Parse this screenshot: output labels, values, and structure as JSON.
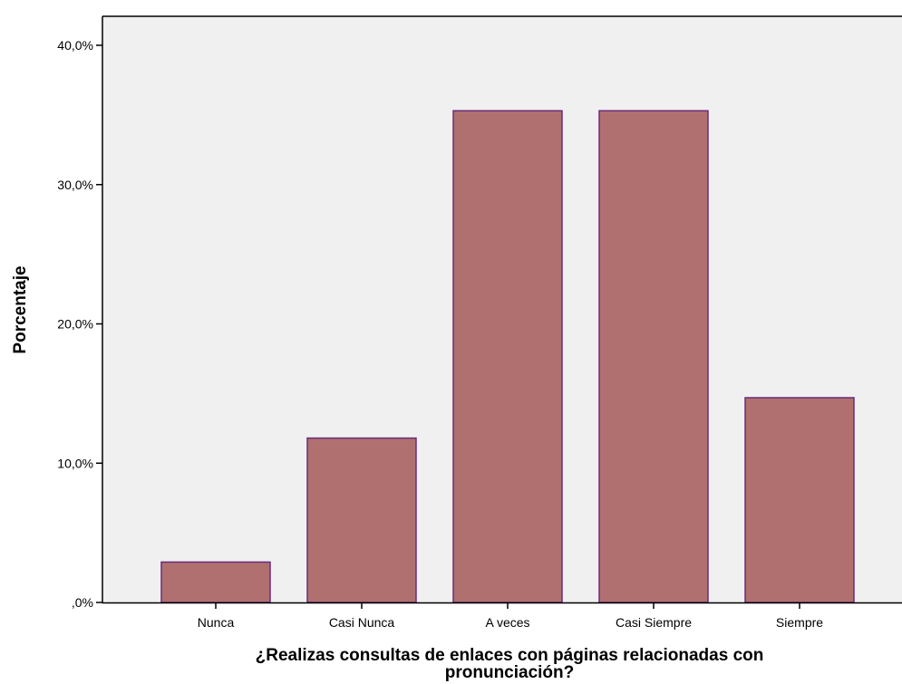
{
  "chart_data": {
    "type": "bar",
    "categories": [
      "Nunca",
      "Casi Nunca",
      "A veces",
      "Casi Siempre",
      "Siempre"
    ],
    "values": [
      2.9,
      11.8,
      35.3,
      35.3,
      14.7
    ],
    "xlabel_lines": [
      "¿Realizas consultas de enlaces con páginas relacionadas con",
      "pronunciación?"
    ],
    "ylabel": "Porcentaje",
    "ylim": [
      0,
      40
    ],
    "yticks": [
      0,
      10,
      20,
      30,
      40
    ],
    "ytick_labels": [
      ",0%",
      "10,0%",
      "20,0%",
      "30,0%",
      "40,0%"
    ],
    "grid": false,
    "colors": {
      "bar_fill": "#b0706f",
      "bar_stroke": "#6b2a7a",
      "plot_background": "#f0f0f0"
    }
  }
}
